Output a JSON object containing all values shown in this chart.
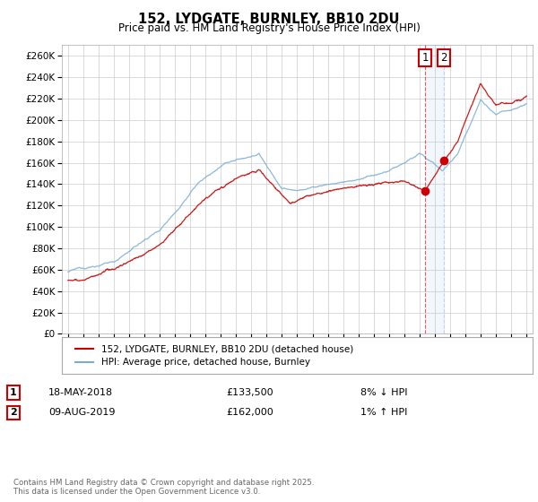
{
  "title": "152, LYDGATE, BURNLEY, BB10 2DU",
  "subtitle": "Price paid vs. HM Land Registry's House Price Index (HPI)",
  "ylabel_ticks": [
    "£0",
    "£20K",
    "£40K",
    "£60K",
    "£80K",
    "£100K",
    "£120K",
    "£140K",
    "£160K",
    "£180K",
    "£200K",
    "£220K",
    "£240K",
    "£260K"
  ],
  "ytick_values": [
    0,
    20000,
    40000,
    60000,
    80000,
    100000,
    120000,
    140000,
    160000,
    180000,
    200000,
    220000,
    240000,
    260000
  ],
  "ylim": [
    0,
    270000
  ],
  "xlim_start": 1994.6,
  "xlim_end": 2025.4,
  "line1_color": "#cc0000",
  "line2_color": "#7aadd4",
  "line1_label": "152, LYDGATE, BURNLEY, BB10 2DU (detached house)",
  "line2_label": "HPI: Average price, detached house, Burnley",
  "annotation1_date": "18-MAY-2018",
  "annotation1_price": "£133,500",
  "annotation1_change": "8% ↓ HPI",
  "annotation2_date": "09-AUG-2019",
  "annotation2_price": "£162,000",
  "annotation2_change": "1% ↑ HPI",
  "marker1_x": 2018.37,
  "marker2_x": 2019.6,
  "marker1_y": 133500,
  "marker2_y": 162000,
  "vline1_x": 2018.37,
  "vline2_x": 2019.6,
  "footer": "Contains HM Land Registry data © Crown copyright and database right 2025.\nThis data is licensed under the Open Government Licence v3.0.",
  "bg_color": "#ffffff",
  "plot_bg_color": "#ffffff",
  "grid_color": "#cccccc"
}
